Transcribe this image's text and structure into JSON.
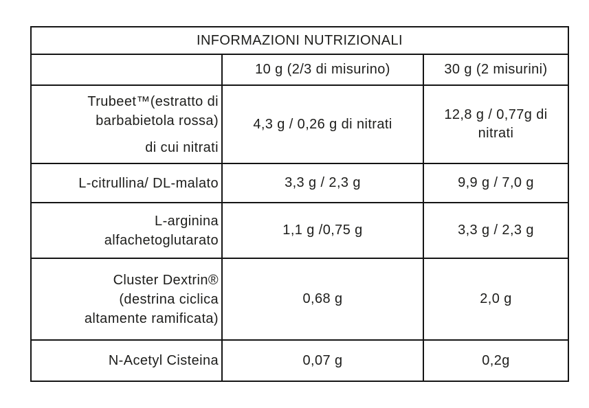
{
  "colors": {
    "border": "#141414",
    "text": "#1d1d1b",
    "background": "#ffffff"
  },
  "table": {
    "title": "INFORMAZIONI NUTRIZIONALI",
    "col_headers": {
      "serving_10g": "10 g (2/3 di misurino)",
      "serving_30g": "30 g (2 misurini)"
    },
    "rows": [
      {
        "label_lines": [
          "Trubeet™(estratto di",
          "barbabietola rossa)"
        ],
        "label_note": "di cui nitrati",
        "per_10g": "4,3 g / 0,26 g di nitrati",
        "per_30g": "12,8 g / 0,77g di nitrati"
      },
      {
        "label_lines": [
          "L-citrullina/ DL-malato"
        ],
        "per_10g": "3,3 g / 2,3 g",
        "per_30g": "9,9 g / 7,0 g"
      },
      {
        "label_lines": [
          "L-arginina",
          "alfachetoglutarato"
        ],
        "per_10g": "1,1 g /0,75 g",
        "per_30g": "3,3 g / 2,3 g"
      },
      {
        "label_lines": [
          "Cluster Dextrin®",
          "(destrina ciclica",
          "altamente ramificata)"
        ],
        "per_10g": "0,68 g",
        "per_30g": "2,0 g"
      },
      {
        "label_lines": [
          "N-Acetyl Cisteina"
        ],
        "per_10g": "0,07 g",
        "per_30g": "0,2g"
      }
    ]
  }
}
